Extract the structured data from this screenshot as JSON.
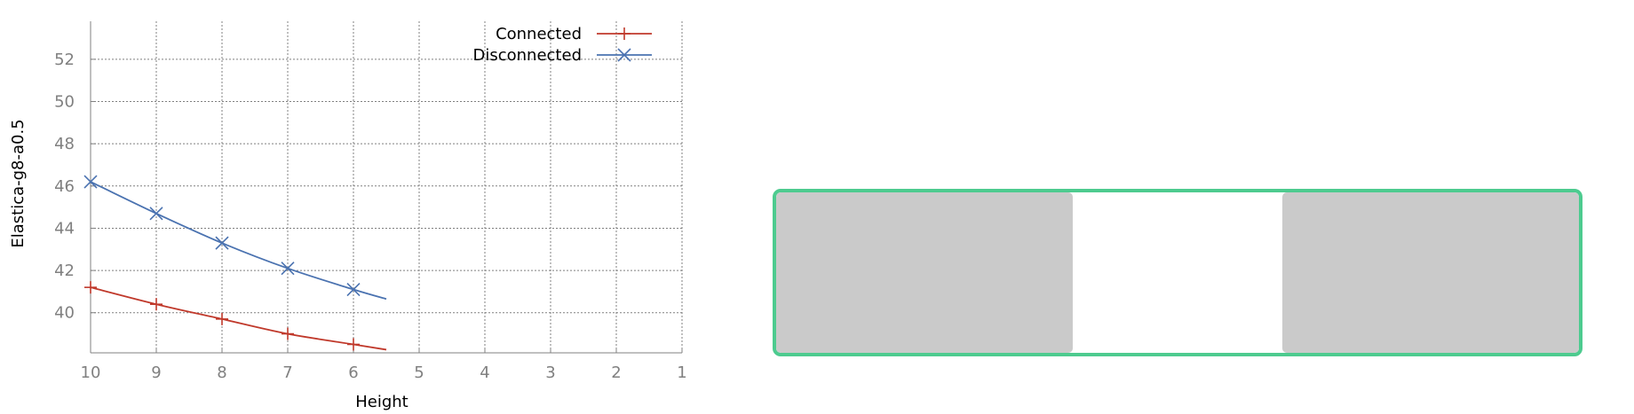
{
  "chart_data": {
    "type": "line",
    "title": "",
    "xlabel": "Height",
    "ylabel": "Elastica-g8-a0.5",
    "xlim": [
      10,
      1
    ],
    "ylim": [
      38.1,
      53.8
    ],
    "x_reversed": true,
    "x_ticks": [
      "10",
      "9",
      "8",
      "7",
      "6",
      "5",
      "4",
      "3",
      "2",
      "1"
    ],
    "y_ticks": [
      "40",
      "42",
      "44",
      "46",
      "48",
      "50",
      "52"
    ],
    "grid": true,
    "legend_position": "top-right",
    "series": [
      {
        "name": "Connected",
        "color": "#c0392b",
        "marker": "plus",
        "markers": [
          {
            "x": 10,
            "y": 41.2
          },
          {
            "x": 9,
            "y": 40.4
          },
          {
            "x": 8,
            "y": 39.7
          },
          {
            "x": 7,
            "y": 39.0
          },
          {
            "x": 6,
            "y": 38.5
          }
        ],
        "line": [
          {
            "x": 10,
            "y": 41.2
          },
          {
            "x": 9,
            "y": 40.4
          },
          {
            "x": 8,
            "y": 39.7
          },
          {
            "x": 7,
            "y": 39.0
          },
          {
            "x": 6,
            "y": 38.5
          },
          {
            "x": 5.5,
            "y": 38.25
          }
        ]
      },
      {
        "name": "Disconnected",
        "color": "#4a72b0",
        "marker": "cross",
        "markers": [
          {
            "x": 10,
            "y": 46.2
          },
          {
            "x": 9,
            "y": 44.7
          },
          {
            "x": 8,
            "y": 43.3
          },
          {
            "x": 7,
            "y": 42.1
          },
          {
            "x": 6,
            "y": 41.1
          }
        ],
        "line": [
          {
            "x": 10,
            "y": 46.2
          },
          {
            "x": 9,
            "y": 44.7
          },
          {
            "x": 8,
            "y": 43.3
          },
          {
            "x": 7,
            "y": 42.1
          },
          {
            "x": 6,
            "y": 41.1
          },
          {
            "x": 5.5,
            "y": 40.65
          }
        ]
      }
    ]
  },
  "diagram": {
    "frame_color": "#4dcb8f",
    "block_color": "#cacaca"
  }
}
